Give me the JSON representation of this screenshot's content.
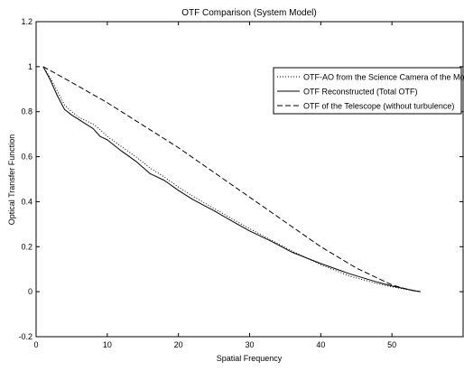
{
  "chart_data": {
    "type": "line",
    "title": "OTF Comparison (System Model)",
    "xlabel": "Spatial Frequency",
    "ylabel": "Optical Transfer Function",
    "xlim": [
      0,
      60
    ],
    "ylim": [
      -0.2,
      1.2
    ],
    "xticks": [
      0,
      10,
      20,
      30,
      40,
      50,
      60
    ],
    "xtick_labels": [
      "0",
      "10",
      "20",
      "30",
      "40",
      "50",
      ""
    ],
    "yticks": [
      -0.2,
      0,
      0.2,
      0.4,
      0.6,
      0.8,
      1,
      1.2
    ],
    "ytick_labels": [
      "-0.2",
      "0",
      "0.2",
      "0.4",
      "0.6",
      "0.8",
      "1",
      "1.2"
    ],
    "grid": false,
    "legend_position": "top-right",
    "series": [
      {
        "name": "OTF-AO from the Science Camera of the Model",
        "style": "dotted",
        "color": "#000000",
        "x": [
          1,
          2,
          3,
          4,
          5,
          6,
          7,
          8,
          9,
          10,
          12,
          14,
          16,
          18,
          20,
          22,
          25,
          28,
          30,
          33,
          36,
          40,
          44,
          48,
          50,
          52,
          53,
          54
        ],
        "y": [
          1.0,
          0.95,
          0.89,
          0.83,
          0.8,
          0.775,
          0.76,
          0.745,
          0.72,
          0.69,
          0.645,
          0.6,
          0.55,
          0.51,
          0.465,
          0.425,
          0.37,
          0.315,
          0.28,
          0.23,
          0.18,
          0.12,
          0.07,
          0.035,
          0.022,
          0.01,
          0.004,
          0.0
        ]
      },
      {
        "name": "OTF Reconstructed (Total OTF)",
        "style": "solid",
        "color": "#000000",
        "x": [
          1,
          2,
          3,
          4,
          5,
          6,
          7,
          8,
          9,
          10,
          12,
          14,
          16,
          18,
          20,
          22,
          25,
          28,
          30,
          33,
          36,
          40,
          44,
          48,
          50,
          52,
          53,
          54
        ],
        "y": [
          1.0,
          0.94,
          0.87,
          0.81,
          0.785,
          0.765,
          0.745,
          0.725,
          0.69,
          0.675,
          0.625,
          0.58,
          0.525,
          0.495,
          0.45,
          0.41,
          0.36,
          0.305,
          0.27,
          0.225,
          0.175,
          0.125,
          0.08,
          0.042,
          0.025,
          0.012,
          0.005,
          0.0
        ]
      },
      {
        "name": "OTF of the Telescope (without turbulence)",
        "style": "dashed",
        "color": "#000000",
        "x": [
          1,
          5,
          10,
          15,
          20,
          25,
          30,
          35,
          40,
          45,
          50,
          52,
          54
        ],
        "y": [
          1.0,
          0.93,
          0.84,
          0.74,
          0.64,
          0.53,
          0.42,
          0.31,
          0.2,
          0.105,
          0.03,
          0.012,
          0.0
        ]
      }
    ]
  }
}
